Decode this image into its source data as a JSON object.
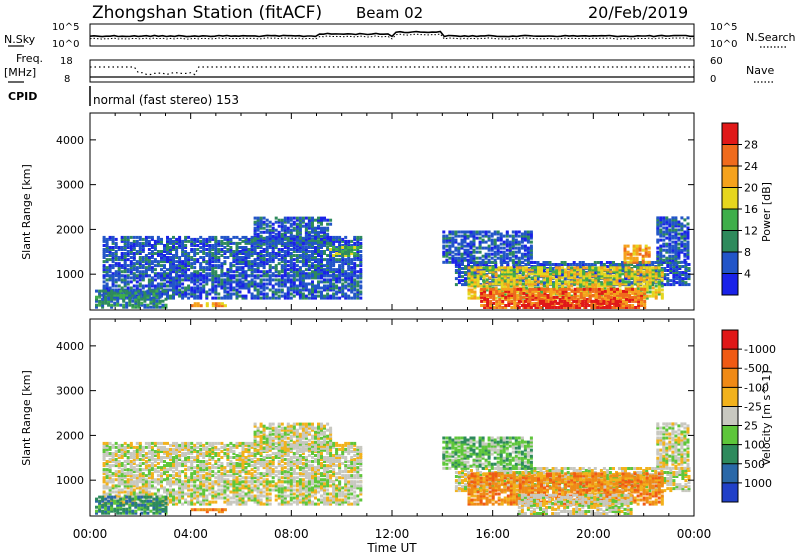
{
  "header": {
    "station": "Zhongshan Station (fitACF)",
    "beam": "Beam 02",
    "date": "20/Feb/2019"
  },
  "top_panels": {
    "noise": {
      "left_label": "N.Sky",
      "left_ticks": [
        "10^5",
        "10^0"
      ],
      "right_ticks": [
        "10^5",
        "10^0"
      ],
      "right_label": "N.Search"
    },
    "freq": {
      "left_label_1": "Freq.",
      "left_label_2": "[MHz]",
      "left_ticks": [
        "18",
        "8"
      ],
      "right_ticks": [
        "60",
        "0"
      ],
      "right_label": "Nave"
    },
    "cpid": {
      "label": "CPID",
      "text": "normal (fast stereo) 153"
    }
  },
  "chart_data": [
    {
      "type": "heatmap",
      "name": "power",
      "ylabel": "Slant Range [km]",
      "yticks": [
        1000,
        2000,
        3000,
        4000
      ],
      "ylim": [
        200,
        4600
      ],
      "xlim": [
        0,
        24
      ],
      "colorbar": {
        "label": "Power [dB]",
        "ticks": [
          "4",
          "8",
          "12",
          "16",
          "20",
          "24",
          "28"
        ],
        "colors": [
          "#1a22e8",
          "#2255c8",
          "#2e8a5c",
          "#3fae4a",
          "#e6d61e",
          "#f5a21c",
          "#ef6b1c",
          "#e01818"
        ]
      },
      "regions": [
        {
          "t0": 0.5,
          "t1": 10.8,
          "r0": 1000,
          "r1": 1900,
          "level": 1
        },
        {
          "t0": 0.5,
          "t1": 10.8,
          "r0": 500,
          "r1": 1000,
          "level": 1
        },
        {
          "t0": 0.2,
          "t1": 3.0,
          "r0": 250,
          "r1": 700,
          "level": 2
        },
        {
          "t0": 4.0,
          "t1": 5.4,
          "r0": 330,
          "r1": 420,
          "level": 5
        },
        {
          "t0": 6.5,
          "t1": 9.5,
          "r0": 1700,
          "r1": 2300,
          "level": 1
        },
        {
          "t0": 9.5,
          "t1": 10.6,
          "r0": 1450,
          "r1": 1650,
          "level": 3
        },
        {
          "t0": 14.5,
          "t1": 23.8,
          "r0": 800,
          "r1": 1300,
          "level": 1
        },
        {
          "t0": 15.0,
          "t1": 22.8,
          "r0": 500,
          "r1": 1200,
          "level": 4
        },
        {
          "t0": 15.5,
          "t1": 22.0,
          "r0": 200,
          "r1": 700,
          "level": 6
        },
        {
          "t0": 17.0,
          "t1": 21.0,
          "r0": 200,
          "r1": 450,
          "level": 7
        },
        {
          "t0": 14.0,
          "t1": 17.5,
          "r0": 1300,
          "r1": 2000,
          "level": 1
        },
        {
          "t0": 22.5,
          "t1": 23.8,
          "r0": 1300,
          "r1": 2300,
          "level": 1
        },
        {
          "t0": 21.2,
          "t1": 22.2,
          "r0": 1300,
          "r1": 1700,
          "level": 5
        }
      ]
    },
    {
      "type": "heatmap",
      "name": "velocity",
      "xlabel": "Time UT",
      "ylabel": "Slant Range [km]",
      "yticks": [
        1000,
        2000,
        3000,
        4000
      ],
      "ylim": [
        200,
        4600
      ],
      "xlim": [
        0,
        24
      ],
      "xticks": [
        "00:00",
        "04:00",
        "08:00",
        "12:00",
        "16:00",
        "20:00",
        "00:00"
      ],
      "colorbar": {
        "label": "Velocity [m s^-1]",
        "ticks": [
          "1000",
          "500",
          "100",
          "25",
          "-25",
          "-100",
          "-500",
          "-1000"
        ],
        "colors": [
          "#2140c8",
          "#2a68a8",
          "#2e8a5c",
          "#5ec63a",
          "#c8c8c0",
          "#f2b21c",
          "#f08a16",
          "#f05a14",
          "#e01818"
        ]
      },
      "regions": [
        {
          "t0": 0.5,
          "t1": 10.8,
          "r0": 1000,
          "r1": 1900,
          "level": 4
        },
        {
          "t0": 0.5,
          "t1": 10.8,
          "r0": 500,
          "r1": 1000,
          "level": 4
        },
        {
          "t0": 0.2,
          "t1": 3.0,
          "r0": 250,
          "r1": 700,
          "level": 2
        },
        {
          "t0": 4.0,
          "t1": 5.4,
          "r0": 330,
          "r1": 420,
          "level": 6
        },
        {
          "t0": 6.5,
          "t1": 9.5,
          "r0": 1700,
          "r1": 2300,
          "level": 4
        },
        {
          "t0": 14.5,
          "t1": 23.8,
          "r0": 800,
          "r1": 1300,
          "level": 4
        },
        {
          "t0": 15.0,
          "t1": 22.8,
          "r0": 500,
          "r1": 1200,
          "level": 6
        },
        {
          "t0": 17.0,
          "t1": 21.5,
          "r0": 200,
          "r1": 700,
          "level": 4
        },
        {
          "t0": 14.0,
          "t1": 17.5,
          "r0": 1300,
          "r1": 2000,
          "level": 3
        },
        {
          "t0": 22.5,
          "t1": 23.8,
          "r0": 1300,
          "r1": 2300,
          "level": 4
        }
      ]
    }
  ]
}
